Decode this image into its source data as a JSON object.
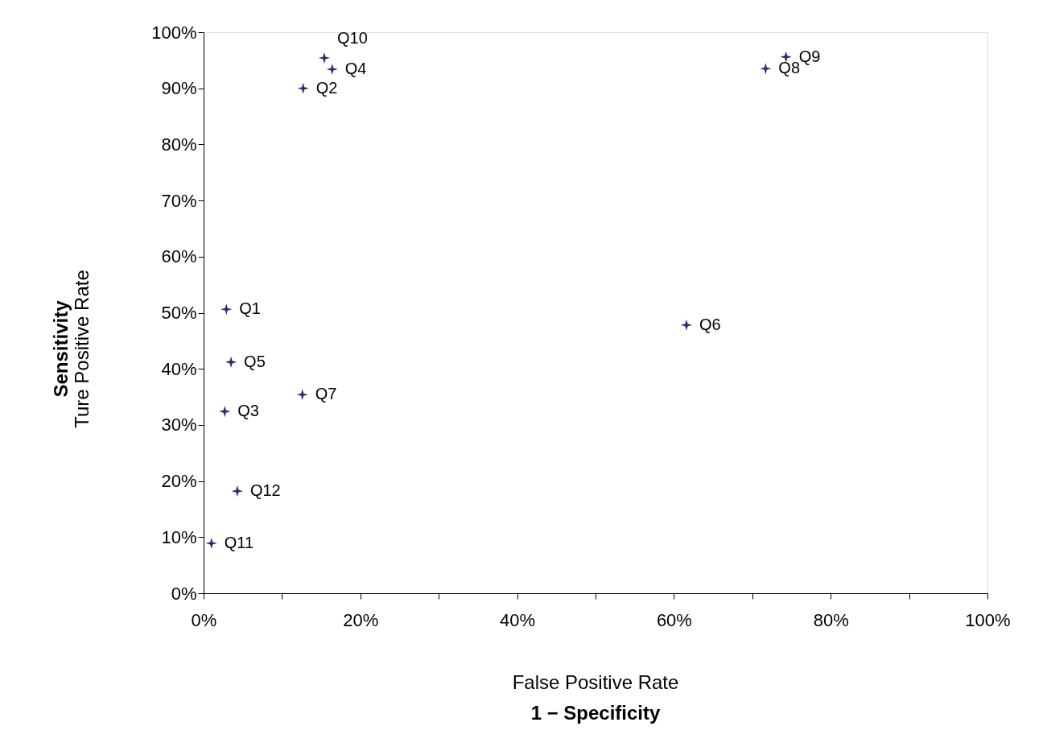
{
  "chart_data": {
    "type": "scatter",
    "xlabel": "False Positive Rate\n1 − Specificity",
    "ylabel": "Sensitivity\nTure Positive Rate",
    "x": [
      2.9,
      12.7,
      2.7,
      16.4,
      3.5,
      61.6,
      12.6,
      71.7,
      74.3,
      15.4,
      1.0,
      4.3
    ],
    "series": [
      {
        "color": "#2e2e6e",
        "values": [
          50.6,
          90.0,
          32.4,
          93.4,
          41.2,
          47.8,
          35.4,
          93.5,
          95.6,
          95.4,
          8.9,
          18.2
        ]
      }
    ],
    "annotations": [
      {
        "text": "Q1",
        "x": 2.9,
        "y": 50.6
      },
      {
        "text": "Q2",
        "x": 12.7,
        "y": 90.0
      },
      {
        "text": "Q3",
        "x": 2.7,
        "y": 32.4
      },
      {
        "text": "Q4",
        "x": 16.4,
        "y": 93.4
      },
      {
        "text": "Q5",
        "x": 3.5,
        "y": 41.2
      },
      {
        "text": "Q6",
        "x": 61.6,
        "y": 47.8
      },
      {
        "text": "Q7",
        "x": 12.6,
        "y": 35.4
      },
      {
        "text": "Q8",
        "x": 71.7,
        "y": 93.5
      },
      {
        "text": "Q9",
        "x": 74.3,
        "y": 95.6
      },
      {
        "text": "Q10",
        "x": 15.4,
        "y": 95.4
      },
      {
        "text": "Q11",
        "x": 1.0,
        "y": 8.9
      },
      {
        "text": "Q12",
        "x": 4.3,
        "y": 18.2
      }
    ],
    "xlim": [
      0,
      100
    ],
    "ylim": [
      0,
      100
    ],
    "xticks": [
      {
        "value": 0,
        "label": "0%"
      },
      {
        "value": 10,
        "label": null
      },
      {
        "value": 20,
        "label": "20%"
      },
      {
        "value": 30,
        "label": null
      },
      {
        "value": 40,
        "label": "40%"
      },
      {
        "value": 50,
        "label": null
      },
      {
        "value": 60,
        "label": "60%"
      },
      {
        "value": 70,
        "label": null
      },
      {
        "value": 80,
        "label": "80%"
      },
      {
        "value": 90,
        "label": null
      },
      {
        "value": 100,
        "label": "100%"
      }
    ],
    "yticks": [
      {
        "value": 0,
        "label": "0%"
      },
      {
        "value": 10,
        "label": "10%"
      },
      {
        "value": 20,
        "label": "20%"
      },
      {
        "value": 30,
        "label": "30%"
      },
      {
        "value": 40,
        "label": "40%"
      },
      {
        "value": 50,
        "label": "50%"
      },
      {
        "value": 60,
        "label": "60%"
      },
      {
        "value": 70,
        "label": "70%"
      },
      {
        "value": 80,
        "label": "80%"
      },
      {
        "value": 90,
        "label": "90%"
      },
      {
        "value": 100,
        "label": "100%"
      }
    ],
    "grid": false,
    "marker": "star"
  }
}
